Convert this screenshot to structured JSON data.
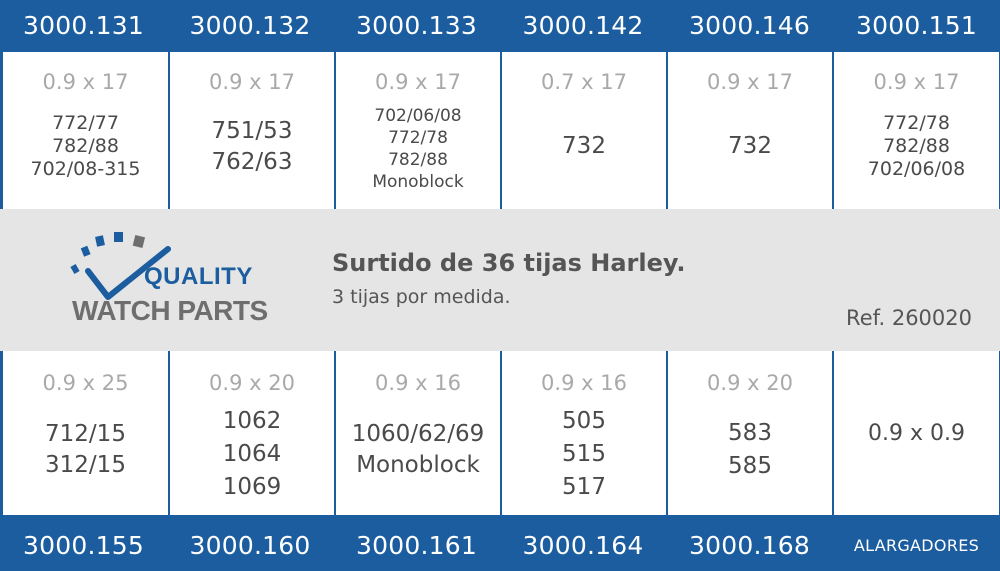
{
  "top_codes": [
    "3000.131",
    "3000.132",
    "3000.133",
    "3000.142",
    "3000.146",
    "3000.151"
  ],
  "top_cells": [
    {
      "size": "0.9 x 17",
      "models": [
        "772/77",
        "782/88",
        "702/08-315"
      ]
    },
    {
      "size": "0.9 x 17",
      "models": [
        "751/53",
        "762/63"
      ]
    },
    {
      "size": "0.9 x 17",
      "models": [
        "702/06/08",
        "772/78",
        "782/88",
        "Monoblock"
      ]
    },
    {
      "size": "0.7 x 17",
      "models": [
        "732"
      ]
    },
    {
      "size": "0.9 x 17",
      "models": [
        "732"
      ]
    },
    {
      "size": "0.9 x 17",
      "models": [
        "772/78",
        "782/88",
        "702/06/08"
      ]
    }
  ],
  "band": {
    "logo_line1": "QUALITY",
    "logo_line2": "WATCH PARTS",
    "title": "Surtido de 36 tijas Harley.",
    "subtitle": "3 tijas por medida.",
    "reference": "Ref. 260020"
  },
  "bottom_cells": [
    {
      "size": "0.9 x 25",
      "models": [
        "712/15",
        "312/15"
      ]
    },
    {
      "size": "0.9 x 20",
      "models": [
        "1062",
        "1064",
        "1069"
      ]
    },
    {
      "size": "0.9 x 16",
      "models": [
        "1060/62/69",
        "Monoblock"
      ]
    },
    {
      "size": "0.9 x 16",
      "models": [
        "505",
        "515",
        "517"
      ]
    },
    {
      "size": "0.9 x 20",
      "models": [
        "583",
        "585"
      ]
    },
    {
      "size": "",
      "models": [
        "0.9 x 0.9"
      ]
    }
  ],
  "bottom_codes": [
    "3000.155",
    "3000.160",
    "3000.161",
    "3000.164",
    "3000.168",
    "ALARGADORES"
  ],
  "colors": {
    "blue": "#1c5da0",
    "band": "#e5e5e5",
    "size_gray": "#a9a9a9",
    "text": "#4a4a4a"
  }
}
